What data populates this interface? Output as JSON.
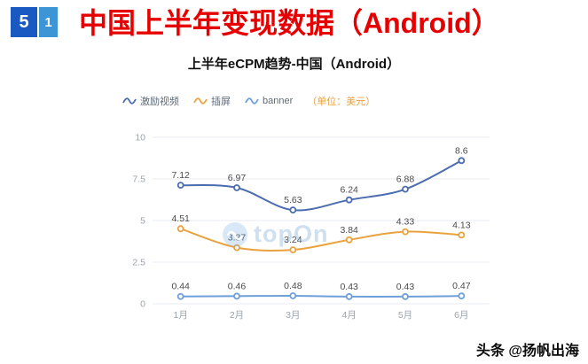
{
  "header": {
    "page_number_primary": "5",
    "page_number_secondary": "1",
    "title": "中国上半年变现数据（Android）"
  },
  "subtitle": "上半年eCPM趋势-中国（Android）",
  "credit": "头条 @扬帆出海",
  "chart_data": {
    "type": "line",
    "title": "上半年eCPM趋势-中国（Android）",
    "unit_label": "（单位：美元）",
    "watermark": "topOn",
    "categories": [
      "1月",
      "2月",
      "3月",
      "4月",
      "5月",
      "6月"
    ],
    "series": [
      {
        "name": "激励视频",
        "color": "#4c6cb0",
        "values": [
          7.12,
          6.97,
          5.63,
          6.24,
          6.88,
          8.6
        ]
      },
      {
        "name": "插屏",
        "color": "#eaa23e",
        "values": [
          4.51,
          3.37,
          3.24,
          3.84,
          4.33,
          4.13
        ]
      },
      {
        "name": "banner",
        "color": "#6f9fd8",
        "values": [
          0.44,
          0.46,
          0.48,
          0.43,
          0.43,
          0.47
        ]
      }
    ],
    "y_ticks": [
      0,
      2.5,
      5,
      7.5,
      10
    ],
    "ylim": [
      0,
      10
    ],
    "grid": true,
    "legend_position": "top-left",
    "unit_color": "#eaa23e",
    "label_color": "#4a4a4a",
    "axis_label_color": "#9aa3ad",
    "grid_color": "#e8ebf0"
  }
}
